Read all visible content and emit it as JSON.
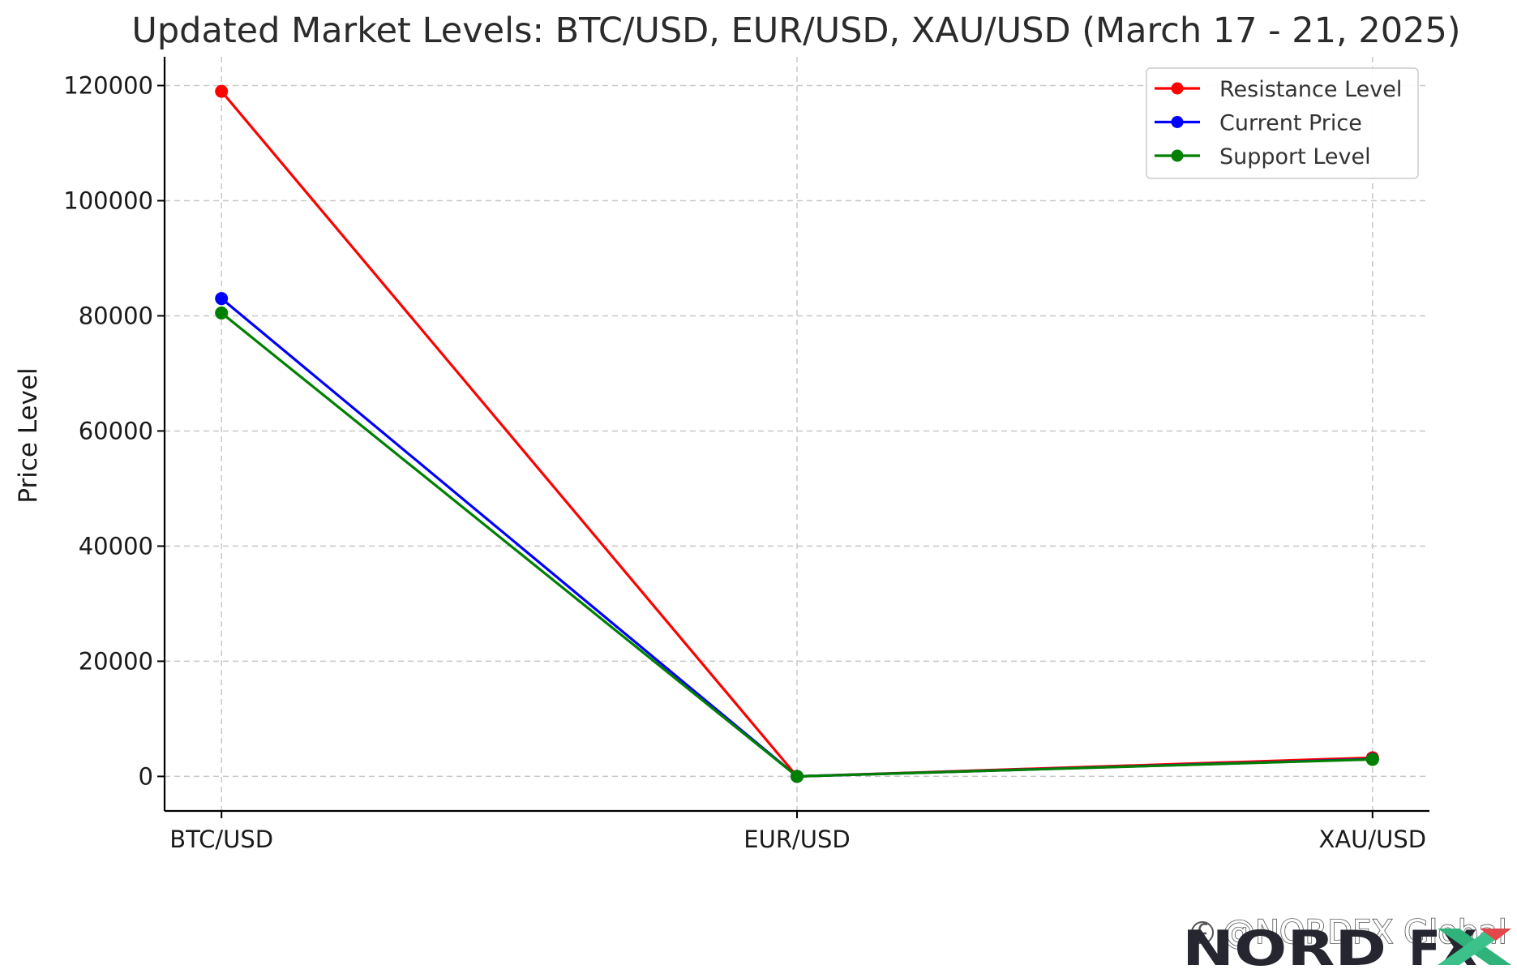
{
  "chart_data": {
    "type": "line",
    "title": "Updated Market Levels: BTC/USD, EUR/USD, XAU/USD (March 17 - 21, 2025)",
    "xlabel": "",
    "ylabel": "Price Level",
    "categories": [
      "BTC/USD",
      "EUR/USD",
      "XAU/USD"
    ],
    "ylim": [
      -6000,
      125000
    ],
    "yticks": [
      0,
      20000,
      40000,
      60000,
      80000,
      100000,
      120000
    ],
    "grid": true,
    "legend_position": "top-right",
    "series": [
      {
        "name": "Resistance Level",
        "color": "#ff0000",
        "values": [
          119000,
          1.1,
          3250
        ]
      },
      {
        "name": "Current Price",
        "color": "#0000ff",
        "values": [
          83000,
          1.09,
          3000
        ]
      },
      {
        "name": "Support Level",
        "color": "#008000",
        "values": [
          80500,
          1.08,
          2950
        ]
      }
    ]
  },
  "watermark": {
    "handle": "@NORDFX Global",
    "brand_left": "NORD",
    "brand_right": "FX",
    "icon": "social-handle-icon"
  }
}
